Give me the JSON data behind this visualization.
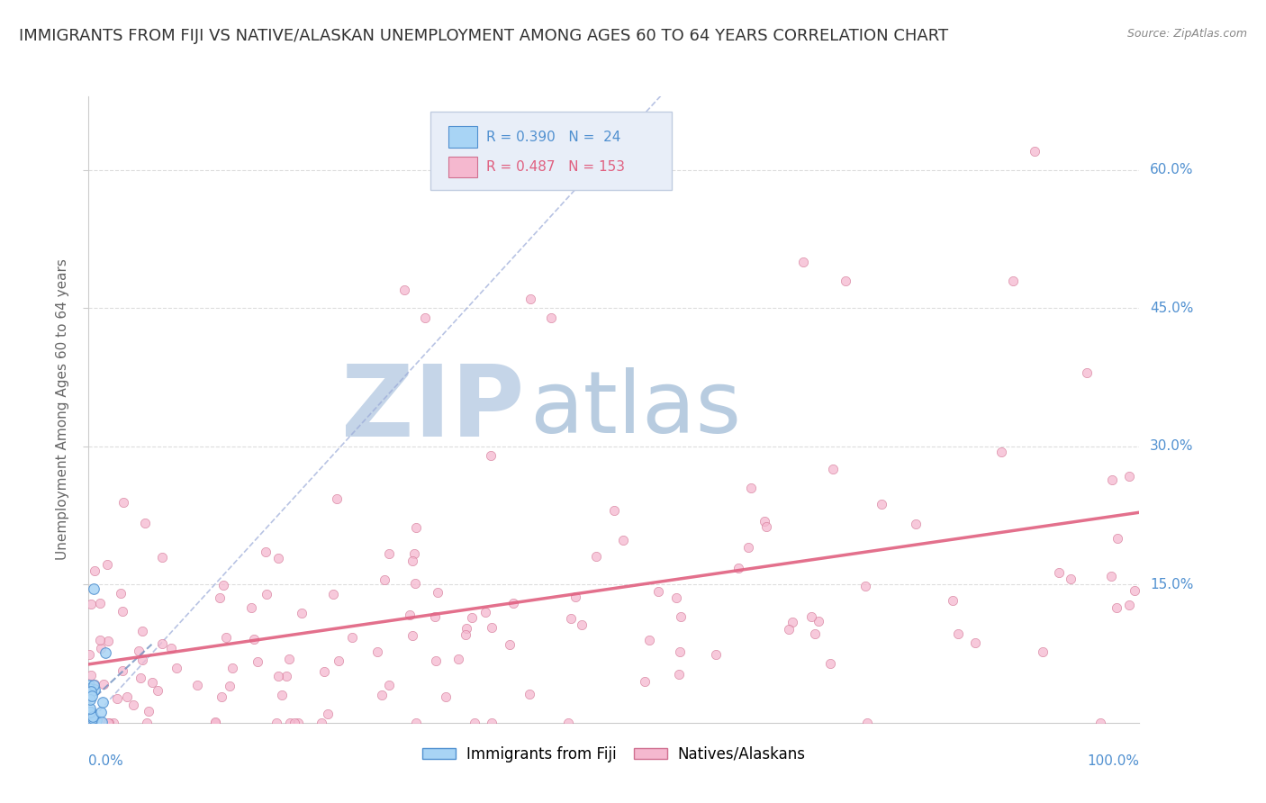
{
  "title": "IMMIGRANTS FROM FIJI VS NATIVE/ALASKAN UNEMPLOYMENT AMONG AGES 60 TO 64 YEARS CORRELATION CHART",
  "source": "Source: ZipAtlas.com",
  "ylabel": "Unemployment Among Ages 60 to 64 years",
  "xlim": [
    0,
    1.0
  ],
  "ylim": [
    0,
    0.68
  ],
  "yticks": [
    0.15,
    0.3,
    0.45,
    0.6
  ],
  "ytick_labels": [
    "15.0%",
    "30.0%",
    "45.0%",
    "60.0%"
  ],
  "fiji_R": 0.39,
  "fiji_N": 24,
  "native_R": 0.487,
  "native_N": 153,
  "fiji_color": "#a8d4f5",
  "fiji_edge_color": "#5090d0",
  "native_color": "#f5b8cf",
  "native_edge_color": "#d07090",
  "fiji_marker_size": 70,
  "native_marker_size": 55,
  "watermark_zip": "ZIP",
  "watermark_atlas": "atlas",
  "watermark_color_zip": "#c8d8ec",
  "watermark_color_atlas": "#b0c8e0",
  "watermark_fontsize": 80,
  "fiji_line_color": "#7090c0",
  "native_line_color": "#e06080",
  "background_color": "#ffffff",
  "grid_color": "#dddddd",
  "title_fontsize": 13,
  "axis_label_fontsize": 11,
  "tick_label_color": "#5090d0",
  "legend_box_color": "#e8eef8",
  "legend_border_color": "#c0cce0"
}
